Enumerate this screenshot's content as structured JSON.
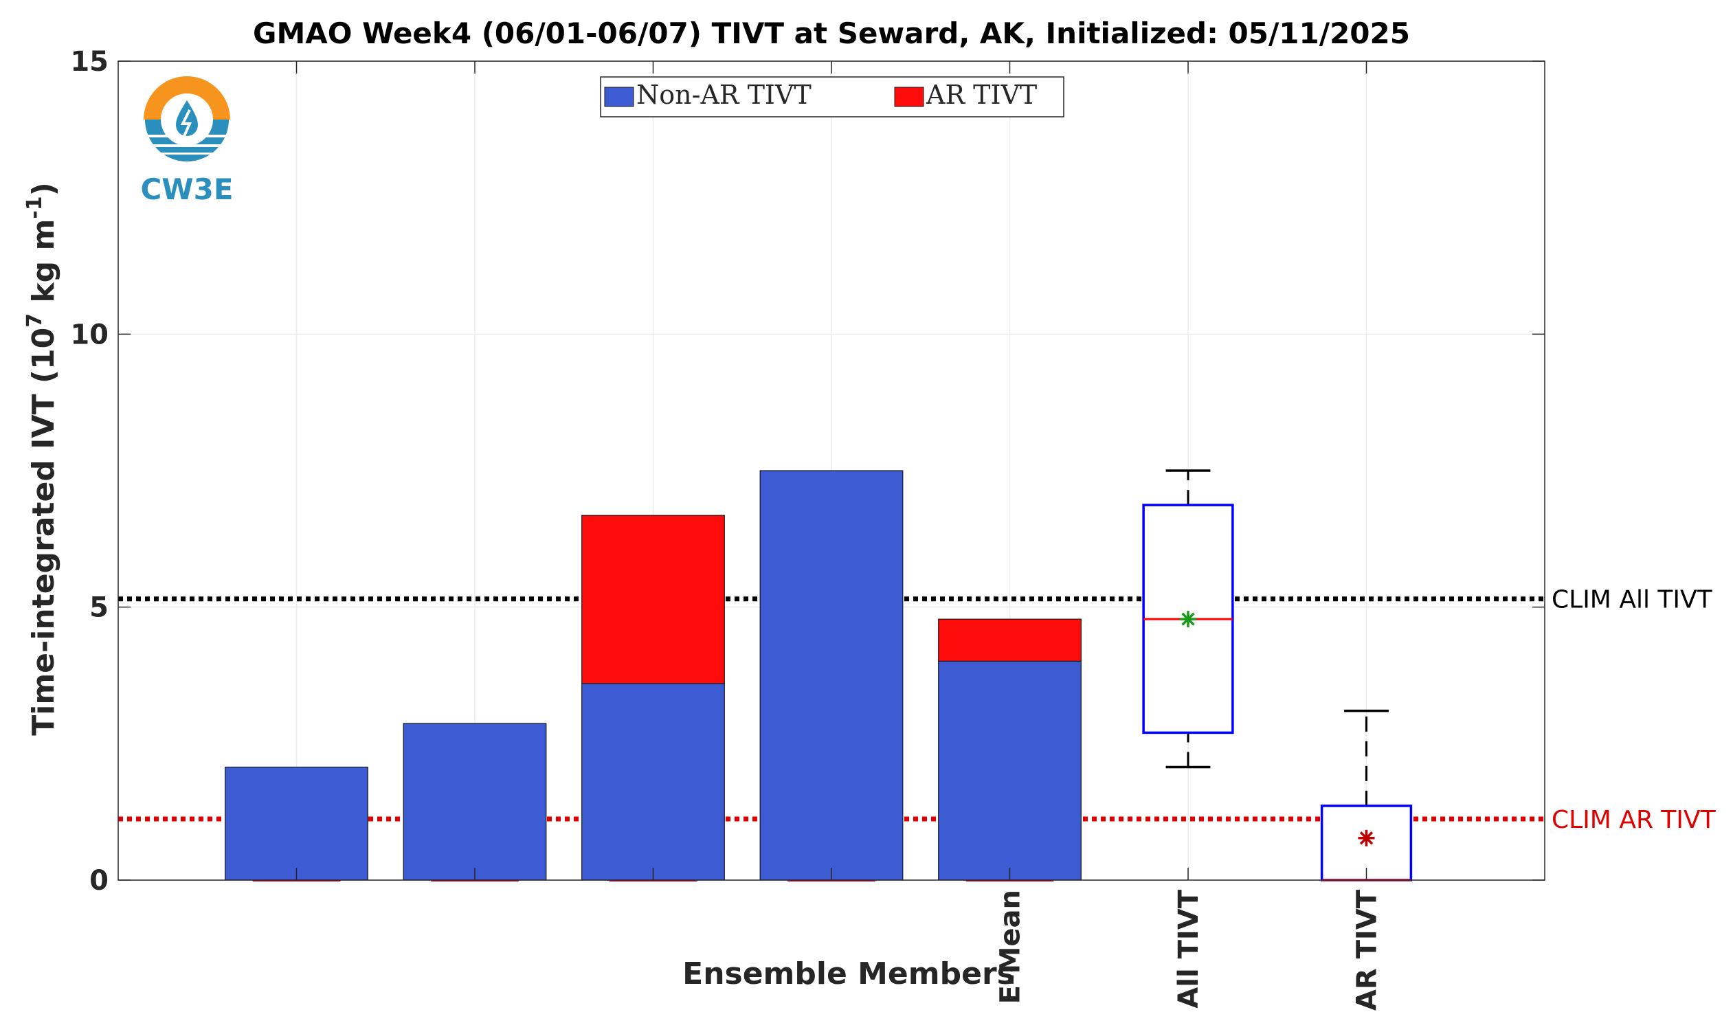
{
  "chart_data": {
    "type": "bar",
    "title": "GMAO Week4 (06/01-06/07) TIVT at Seward, AK, Initialized: 05/11/2025",
    "xlabel": "Ensemble Members",
    "ylabel_main": "Time-integrated IVT (10",
    "ylabel_exp1": "7",
    "ylabel_mid": " kg m",
    "ylabel_exp2": "-1",
    "ylabel_end": ")",
    "ylim": [
      0,
      15
    ],
    "yticks": [
      {
        "value": 0,
        "label": "0"
      },
      {
        "value": 5,
        "label": "5"
      },
      {
        "value": 10,
        "label": "10"
      },
      {
        "value": 15,
        "label": "15"
      }
    ],
    "xlim": [
      0,
      8
    ],
    "grid": true,
    "legend_position": "top-center",
    "legend": [
      {
        "name": "Non-AR TIVT",
        "color": "#3d5bd3"
      },
      {
        "name": "AR TIVT",
        "color": "#fe0c0c"
      }
    ],
    "categories": [
      {
        "x": 1,
        "label": ""
      },
      {
        "x": 2,
        "label": ""
      },
      {
        "x": 3,
        "label": ""
      },
      {
        "x": 4,
        "label": ""
      },
      {
        "x": 5,
        "label": "E-Mean"
      },
      {
        "x": 6,
        "label": "All TIVT"
      },
      {
        "x": 7,
        "label": "AR TIVT"
      }
    ],
    "series": [
      {
        "name": "Non-AR TIVT",
        "color": "#3d5bd3",
        "x": [
          1,
          2,
          3,
          4,
          5
        ],
        "values": [
          2.07,
          2.87,
          3.6,
          7.5,
          4.01
        ]
      },
      {
        "name": "AR TIVT",
        "color": "#fe0c0c",
        "x": [
          1,
          2,
          3,
          4,
          5
        ],
        "values": [
          0,
          0,
          3.08,
          0,
          0.77
        ]
      }
    ],
    "boxplots": [
      {
        "x": 6,
        "whisker_low": 2.07,
        "q1": 2.7,
        "median": 4.78,
        "q3": 6.87,
        "whisker_high": 7.5,
        "mean": 4.78,
        "mean_color": "#1a9a1a"
      },
      {
        "x": 7,
        "whisker_low": 0,
        "q1": 0,
        "median": 0,
        "q3": 1.36,
        "whisker_high": 3.1,
        "mean": 0.77,
        "mean_color": "#c00000"
      }
    ],
    "reference_lines": [
      {
        "name": "CLIM All TIVT",
        "value": 5.15,
        "color": "#000000"
      },
      {
        "name": "CLIM AR TIVT",
        "value": 1.12,
        "color": "#e00000"
      }
    ]
  },
  "logo": {
    "text": "CW3E"
  },
  "colors": {
    "bar_edge": "#1a1a1a",
    "box": "#0000ff",
    "median": "#ff0000",
    "grid": "#ebebeb",
    "axis": "#262626",
    "logo_orange": "#f7941d",
    "logo_blue": "#2a8fbd"
  }
}
